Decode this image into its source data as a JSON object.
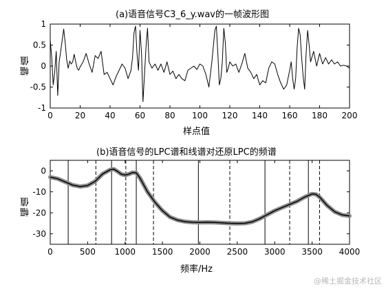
{
  "chart_data": [
    {
      "type": "line",
      "title": "(a)语音信号C3_6_y.wav的一帧波形图",
      "xlabel": "样点值",
      "ylabel": "幅值",
      "xlim": [
        0,
        200
      ],
      "ylim": [
        -1,
        1
      ],
      "xticks": [
        0,
        20,
        40,
        60,
        80,
        100,
        120,
        140,
        160,
        180,
        200
      ],
      "yticks": [
        -1,
        -0.5,
        0,
        0.5,
        1
      ],
      "grid": false,
      "series": [
        {
          "x": [
            0,
            1,
            2,
            3,
            4,
            5,
            6,
            7,
            8,
            9,
            10,
            11,
            12,
            13,
            14,
            15,
            16,
            17,
            18,
            19,
            20,
            22,
            24,
            26,
            28,
            30,
            32,
            34,
            36,
            38,
            40,
            42,
            44,
            46,
            48,
            50,
            52,
            54,
            55,
            56,
            57,
            58,
            59,
            60,
            61,
            62,
            63,
            64,
            65,
            66,
            68,
            70,
            72,
            74,
            76,
            78,
            80,
            82,
            84,
            86,
            88,
            90,
            92,
            94,
            96,
            98,
            100,
            102,
            104,
            106,
            108,
            110,
            111,
            112,
            113,
            114,
            115,
            116,
            117,
            118,
            119,
            120,
            122,
            124,
            126,
            128,
            130,
            132,
            134,
            136,
            138,
            140,
            142,
            144,
            146,
            148,
            150,
            152,
            154,
            156,
            158,
            160,
            161,
            162,
            163,
            164,
            165,
            166,
            167,
            168,
            169,
            170,
            171,
            172,
            173,
            174,
            176,
            178,
            180,
            182,
            184,
            186,
            188,
            190,
            192,
            194,
            196,
            198,
            200
          ],
          "y": [
            0.62,
            0.2,
            -0.45,
            -0.15,
            0.35,
            -0.7,
            0.1,
            0.35,
            0.62,
            0.88,
            0.55,
            0.15,
            -0.05,
            0.12,
            0.05,
            0.1,
            0.28,
            0.1,
            -0.05,
            -0.1,
            -0.02,
            0.1,
            0.3,
            0.05,
            -0.15,
            0.25,
            0.18,
            0.35,
            -0.2,
            -0.15,
            -0.3,
            -0.45,
            -0.25,
            -0.1,
            0.05,
            -0.05,
            -0.3,
            -0.1,
            0.2,
            0.8,
            0.95,
            0.3,
            -0.1,
            0.85,
            0.3,
            -0.85,
            -0.2,
            0.45,
            0.9,
            0.1,
            -0.05,
            0.05,
            -0.1,
            0.05,
            -0.15,
            0.1,
            -0.2,
            -0.12,
            -0.3,
            -0.2,
            -0.3,
            -0.35,
            -0.1,
            -0.05,
            0.0,
            -0.08,
            0.05,
            0.0,
            -0.2,
            -0.5,
            0.1,
            0.85,
            0.95,
            0.3,
            -0.45,
            -0.3,
            0.1,
            0.9,
            0.55,
            -0.15,
            -0.05,
            0.1,
            0.0,
            0.05,
            -0.15,
            0.05,
            0.3,
            -0.05,
            -0.15,
            -0.3,
            -0.2,
            -0.45,
            -0.35,
            -0.4,
            -0.05,
            0.1,
            0.05,
            -0.2,
            -0.4,
            -0.55,
            -0.45,
            -0.1,
            0.1,
            -0.3,
            -0.55,
            -0.3,
            0.45,
            0.9,
            0.75,
            0.2,
            -0.25,
            -0.55,
            0.3,
            0.85,
            0.5,
            0.1,
            0.35,
            0.0,
            0.3,
            0.05,
            0.2,
            0.05,
            0.15,
            0.05,
            0.1,
            0.0,
            0.02,
            0.0,
            -0.05
          ]
        }
      ]
    },
    {
      "type": "line",
      "title": "(b)语音信号的LPC谱和线谱对还原LPC的频谱",
      "xlabel": "频率/Hz",
      "ylabel": "幅值",
      "xlim": [
        0,
        4000
      ],
      "ylim": [
        -35,
        5
      ],
      "xticks": [
        0,
        500,
        1000,
        1500,
        2000,
        2500,
        3000,
        3500,
        4000
      ],
      "yticks": [
        -30,
        -20,
        -10,
        0
      ],
      "grid": false,
      "series": [
        {
          "x": [
            0,
            100,
            200,
            300,
            400,
            500,
            600,
            700,
            800,
            850,
            900,
            950,
            1000,
            1050,
            1100,
            1150,
            1200,
            1300,
            1400,
            1500,
            1600,
            1700,
            1800,
            1900,
            2000,
            2100,
            2200,
            2300,
            2400,
            2500,
            2600,
            2700,
            2800,
            2900,
            3000,
            3100,
            3200,
            3300,
            3400,
            3500,
            3550,
            3600,
            3700,
            3800,
            3900,
            4000
          ],
          "y": [
            -3,
            -3.8,
            -5.3,
            -6.8,
            -7.5,
            -7,
            -5,
            -1.5,
            0.5,
            0.8,
            -0.3,
            -1.6,
            -2,
            -1.6,
            -0.8,
            -1,
            -3.5,
            -10,
            -15,
            -19,
            -22,
            -23.5,
            -24.2,
            -24.5,
            -24.6,
            -24.5,
            -24.6,
            -24.8,
            -25,
            -25.1,
            -25,
            -24.3,
            -22.8,
            -20.9,
            -19,
            -17.5,
            -16,
            -14.5,
            -12.5,
            -11,
            -11.2,
            -12.5,
            -16.5,
            -19.5,
            -21,
            -21.5
          ]
        }
      ],
      "solid_vlines": [
        240,
        820,
        1150,
        1980,
        2870,
        3450
      ],
      "dashed_vlines": [
        610,
        1010,
        1380,
        2400,
        3200,
        3600
      ]
    }
  ],
  "watermark": "@稀土掘金技术社区"
}
